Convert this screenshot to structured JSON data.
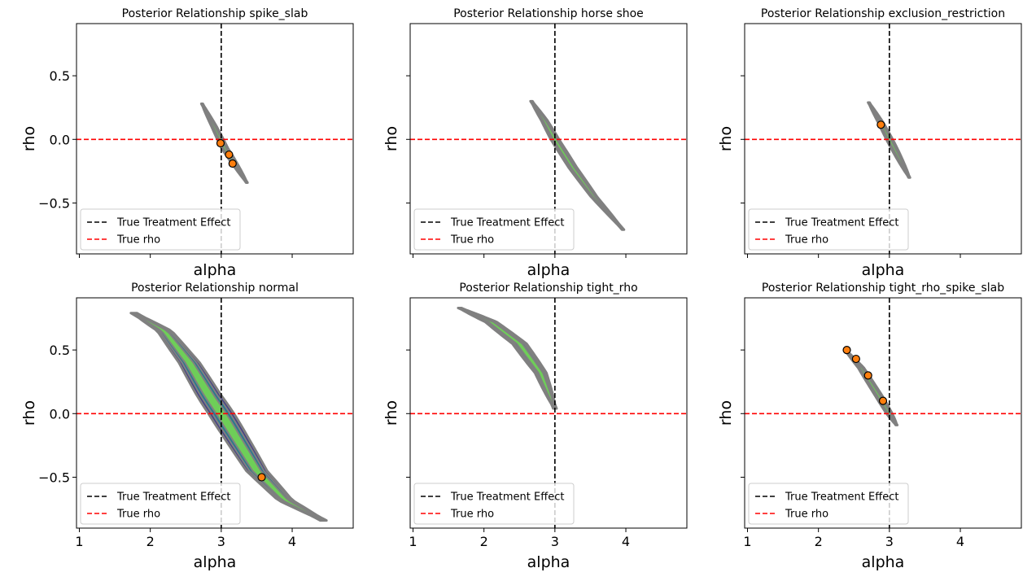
{
  "chart_data": {
    "type": "contour",
    "layout": "2x3 grid",
    "xlabel": "alpha",
    "ylabel": "rho",
    "xlim": [
      0.96,
      4.86
    ],
    "ylim": [
      -0.9,
      0.91
    ],
    "xticks": [
      1,
      2,
      3,
      4
    ],
    "yticks": [
      -0.5,
      0.0,
      0.5
    ],
    "ytick_labels": [
      "−0.5",
      "0.0",
      "0.5"
    ],
    "grid": false,
    "legend_placement": "lower-left",
    "legend": [
      {
        "label": "True Treatment Effect",
        "color": "#000000",
        "style": "dashed"
      },
      {
        "label": "True rho",
        "color": "#ff0000",
        "style": "dashed"
      }
    ],
    "reference_lines": {
      "true_treatment_effect_alpha": 3.0,
      "true_rho": 0.0
    },
    "contour_colors": {
      "outer": "#433e85",
      "middle": "#2a788e",
      "inner": "#6ece58",
      "edge": "#808080"
    },
    "point_color": "#ff7f0e",
    "panels": [
      {
        "title": "Posterior Relationship spike_slab",
        "ridge": [
          [
            2.73,
            0.28
          ],
          [
            2.9,
            0.1
          ],
          [
            3.05,
            -0.07
          ],
          [
            3.2,
            -0.2
          ],
          [
            3.36,
            -0.34
          ]
        ],
        "half_width": 0.045,
        "points": [
          [
            2.99,
            -0.03
          ],
          [
            3.11,
            -0.12
          ],
          [
            3.16,
            -0.19
          ]
        ]
      },
      {
        "title": "Posterior Relationship horse shoe",
        "ridge": [
          [
            2.67,
            0.3
          ],
          [
            2.85,
            0.15
          ],
          [
            3.0,
            0.0
          ],
          [
            3.25,
            -0.22
          ],
          [
            3.55,
            -0.45
          ],
          [
            3.96,
            -0.71
          ]
        ],
        "half_width": 0.06,
        "points": []
      },
      {
        "title": "Posterior Relationship exclusion_restriction",
        "ridge": [
          [
            2.71,
            0.29
          ],
          [
            2.88,
            0.13
          ],
          [
            3.03,
            -0.03
          ],
          [
            3.15,
            -0.16
          ],
          [
            3.28,
            -0.3
          ]
        ],
        "half_width": 0.045,
        "points": [
          [
            2.88,
            0.115
          ]
        ]
      },
      {
        "title": "Posterior Relationship normal",
        "ridge": [
          [
            1.77,
            0.79
          ],
          [
            2.2,
            0.65
          ],
          [
            2.55,
            0.4
          ],
          [
            2.82,
            0.15
          ],
          [
            3.0,
            0.0
          ],
          [
            3.2,
            -0.18
          ],
          [
            3.5,
            -0.45
          ],
          [
            3.9,
            -0.68
          ],
          [
            4.44,
            -0.84
          ]
        ],
        "half_width": 0.18,
        "points": [
          [
            3.57,
            -0.5
          ]
        ]
      },
      {
        "title": "Posterior Relationship tight_rho",
        "ridge": [
          [
            1.66,
            0.83
          ],
          [
            2.1,
            0.72
          ],
          [
            2.5,
            0.55
          ],
          [
            2.8,
            0.32
          ],
          [
            3.0,
            0.04
          ]
        ],
        "half_width": 0.1,
        "points": []
      },
      {
        "title": "Posterior Relationship tight_rho_spike_slab",
        "ridge": [
          [
            2.38,
            0.5
          ],
          [
            2.6,
            0.36
          ],
          [
            2.85,
            0.14
          ],
          [
            3.0,
            0.0
          ],
          [
            3.1,
            -0.09
          ]
        ],
        "half_width": 0.05,
        "points": [
          [
            2.4,
            0.5
          ],
          [
            2.53,
            0.43
          ],
          [
            2.7,
            0.3
          ],
          [
            2.91,
            0.1
          ]
        ]
      }
    ]
  }
}
